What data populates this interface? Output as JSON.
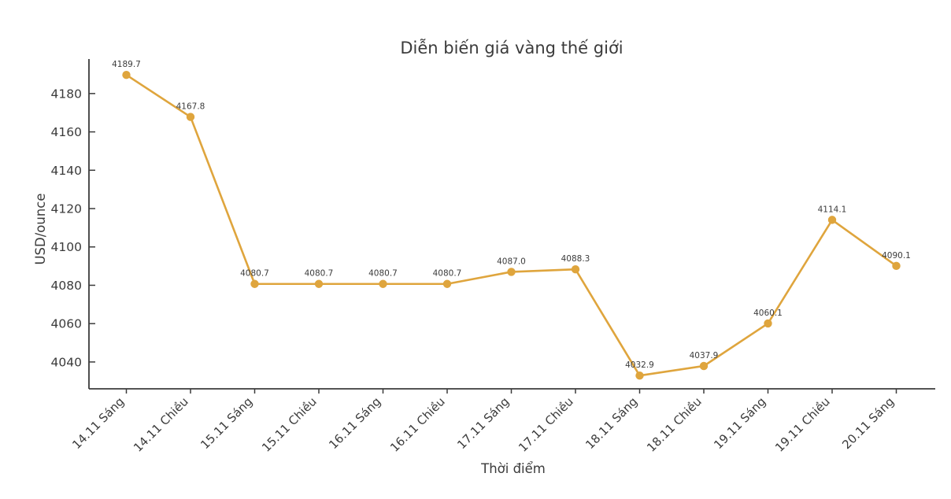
{
  "chart_data": {
    "type": "line",
    "title": "Diễn biến giá vàng thế giới",
    "xlabel": "Thời điểm",
    "ylabel": "USD/ounce",
    "categories": [
      "14.11 Sáng",
      "14.11 Chiều",
      "15.11 Sáng",
      "15.11 Chiều",
      "16.11 Sáng",
      "16.11 Chiều",
      "17.11 Sáng",
      "17.11 Chiều",
      "18.11 Sáng",
      "18.11 Chiều",
      "19.11 Sáng",
      "19.11 Chiều",
      "20.11 Sáng"
    ],
    "values": [
      4189.7,
      4167.8,
      4080.7,
      4080.7,
      4080.7,
      4080.7,
      4087.0,
      4088.3,
      4032.9,
      4037.9,
      4060.1,
      4114.1,
      4090.1
    ],
    "point_labels": [
      "4189.7",
      "4167.8",
      "4080.7",
      "4080.7",
      "4080.7",
      "4080.7",
      "4087.0",
      "4088.3",
      "4032.9",
      "4037.9",
      "4060.1",
      "4114.1",
      "4090.1"
    ],
    "yticks": [
      4040,
      4060,
      4080,
      4100,
      4120,
      4140,
      4160,
      4180
    ],
    "ylim": [
      4026,
      4198
    ],
    "grid": false,
    "legend": "none",
    "line_color": "#DFA53D",
    "marker_color": "#DFA53D",
    "axis_color": "#3b3b3b",
    "text_color": "#3b3b3b",
    "background_color": "#ffffff"
  }
}
